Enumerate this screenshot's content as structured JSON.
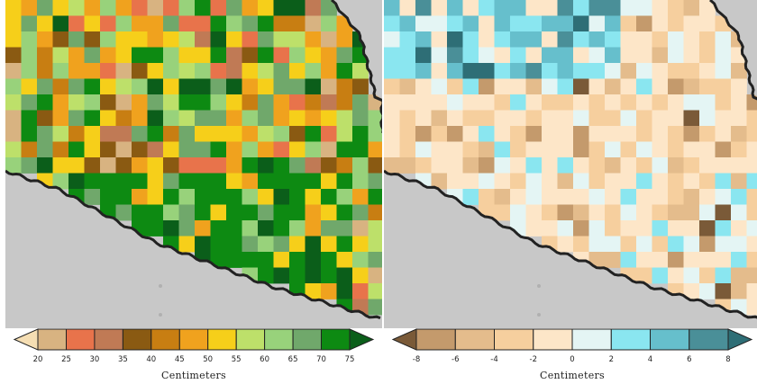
{
  "maps": [
    {
      "id": "left",
      "colorbar": {
        "ticks": [
          "20",
          "25",
          "30",
          "35",
          "40",
          "45",
          "50",
          "55",
          "60",
          "65",
          "70",
          "75"
        ],
        "colors": [
          "#f5deb3",
          "#d8b381",
          "#e8734b",
          "#c07a55",
          "#8a5a12",
          "#c87e12",
          "#f0a21e",
          "#f6cf1a",
          "#bde06a",
          "#98d27b",
          "#70a86b",
          "#0d8a12",
          "#0b5e1a"
        ],
        "unit_label": "Centimeters"
      }
    },
    {
      "id": "right",
      "colorbar": {
        "ticks": [
          "-8",
          "-6",
          "-4",
          "-2",
          "0",
          "2",
          "4",
          "6",
          "8"
        ],
        "colors": [
          "#7a5a38",
          "#c49a6c",
          "#e4bc8c",
          "#f6cf9e",
          "#fde6c8",
          "#e4f5f4",
          "#8ae6f0",
          "#66bfcc",
          "#4a8f98",
          "#2e6e76"
        ],
        "unit_label": "Centimeters"
      }
    }
  ]
}
